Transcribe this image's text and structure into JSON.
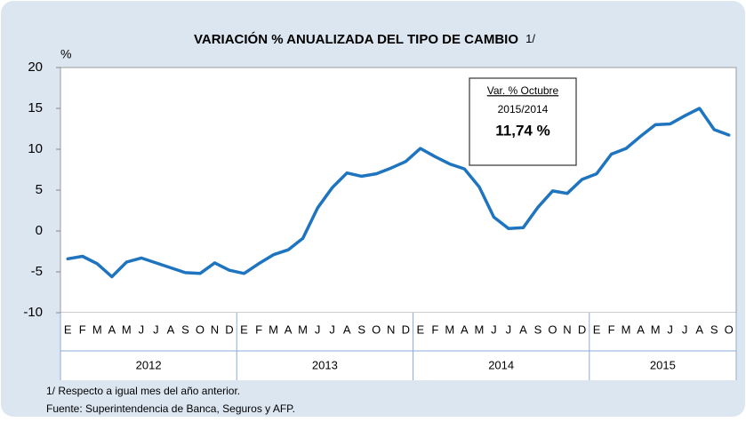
{
  "chart_data": {
    "type": "line",
    "title": "VARIACIÓN % ANUALIZADA DEL TIPO DE CAMBIO",
    "title_note": "1/",
    "y_unit": "%",
    "categories": [
      "E",
      "F",
      "M",
      "A",
      "M",
      "J",
      "J",
      "A",
      "S",
      "O",
      "N",
      "D",
      "E",
      "F",
      "M",
      "A",
      "M",
      "J",
      "J",
      "A",
      "S",
      "O",
      "N",
      "D",
      "E",
      "F",
      "M",
      "A",
      "M",
      "J",
      "J",
      "A",
      "S",
      "O",
      "N",
      "D",
      "E",
      "F",
      "M",
      "A",
      "M",
      "J",
      "J",
      "A",
      "S",
      "O"
    ],
    "year_groups": [
      "2012",
      "2013",
      "2014",
      "2015"
    ],
    "values": [
      -3.4,
      -3.1,
      -4.0,
      -5.6,
      -3.8,
      -3.3,
      -3.9,
      -4.5,
      -5.1,
      -5.2,
      -3.9,
      -4.8,
      -5.2,
      -4.0,
      -2.9,
      -2.3,
      -0.9,
      2.8,
      5.3,
      7.1,
      6.7,
      7.0,
      7.7,
      8.5,
      10.1,
      9.1,
      8.2,
      7.6,
      5.4,
      1.7,
      0.3,
      0.4,
      2.9,
      4.9,
      4.6,
      6.3,
      7.0,
      9.4,
      10.1,
      11.6,
      13.0,
      13.1,
      14.1,
      15.0,
      12.4,
      11.74
    ],
    "color": "#1f74c0",
    "ylim": [
      -10,
      20
    ],
    "yticks": [
      -10,
      -5,
      0,
      5,
      10,
      15,
      20
    ],
    "grid": false,
    "annotation": {
      "title": "Var. % Octubre",
      "period": "2015/2014",
      "value": "11,74 %"
    },
    "footnotes": [
      "1/ Respecto a igual mes del año anterior.",
      "Fuente: Superintendencia de Banca, Seguros y AFP."
    ]
  }
}
